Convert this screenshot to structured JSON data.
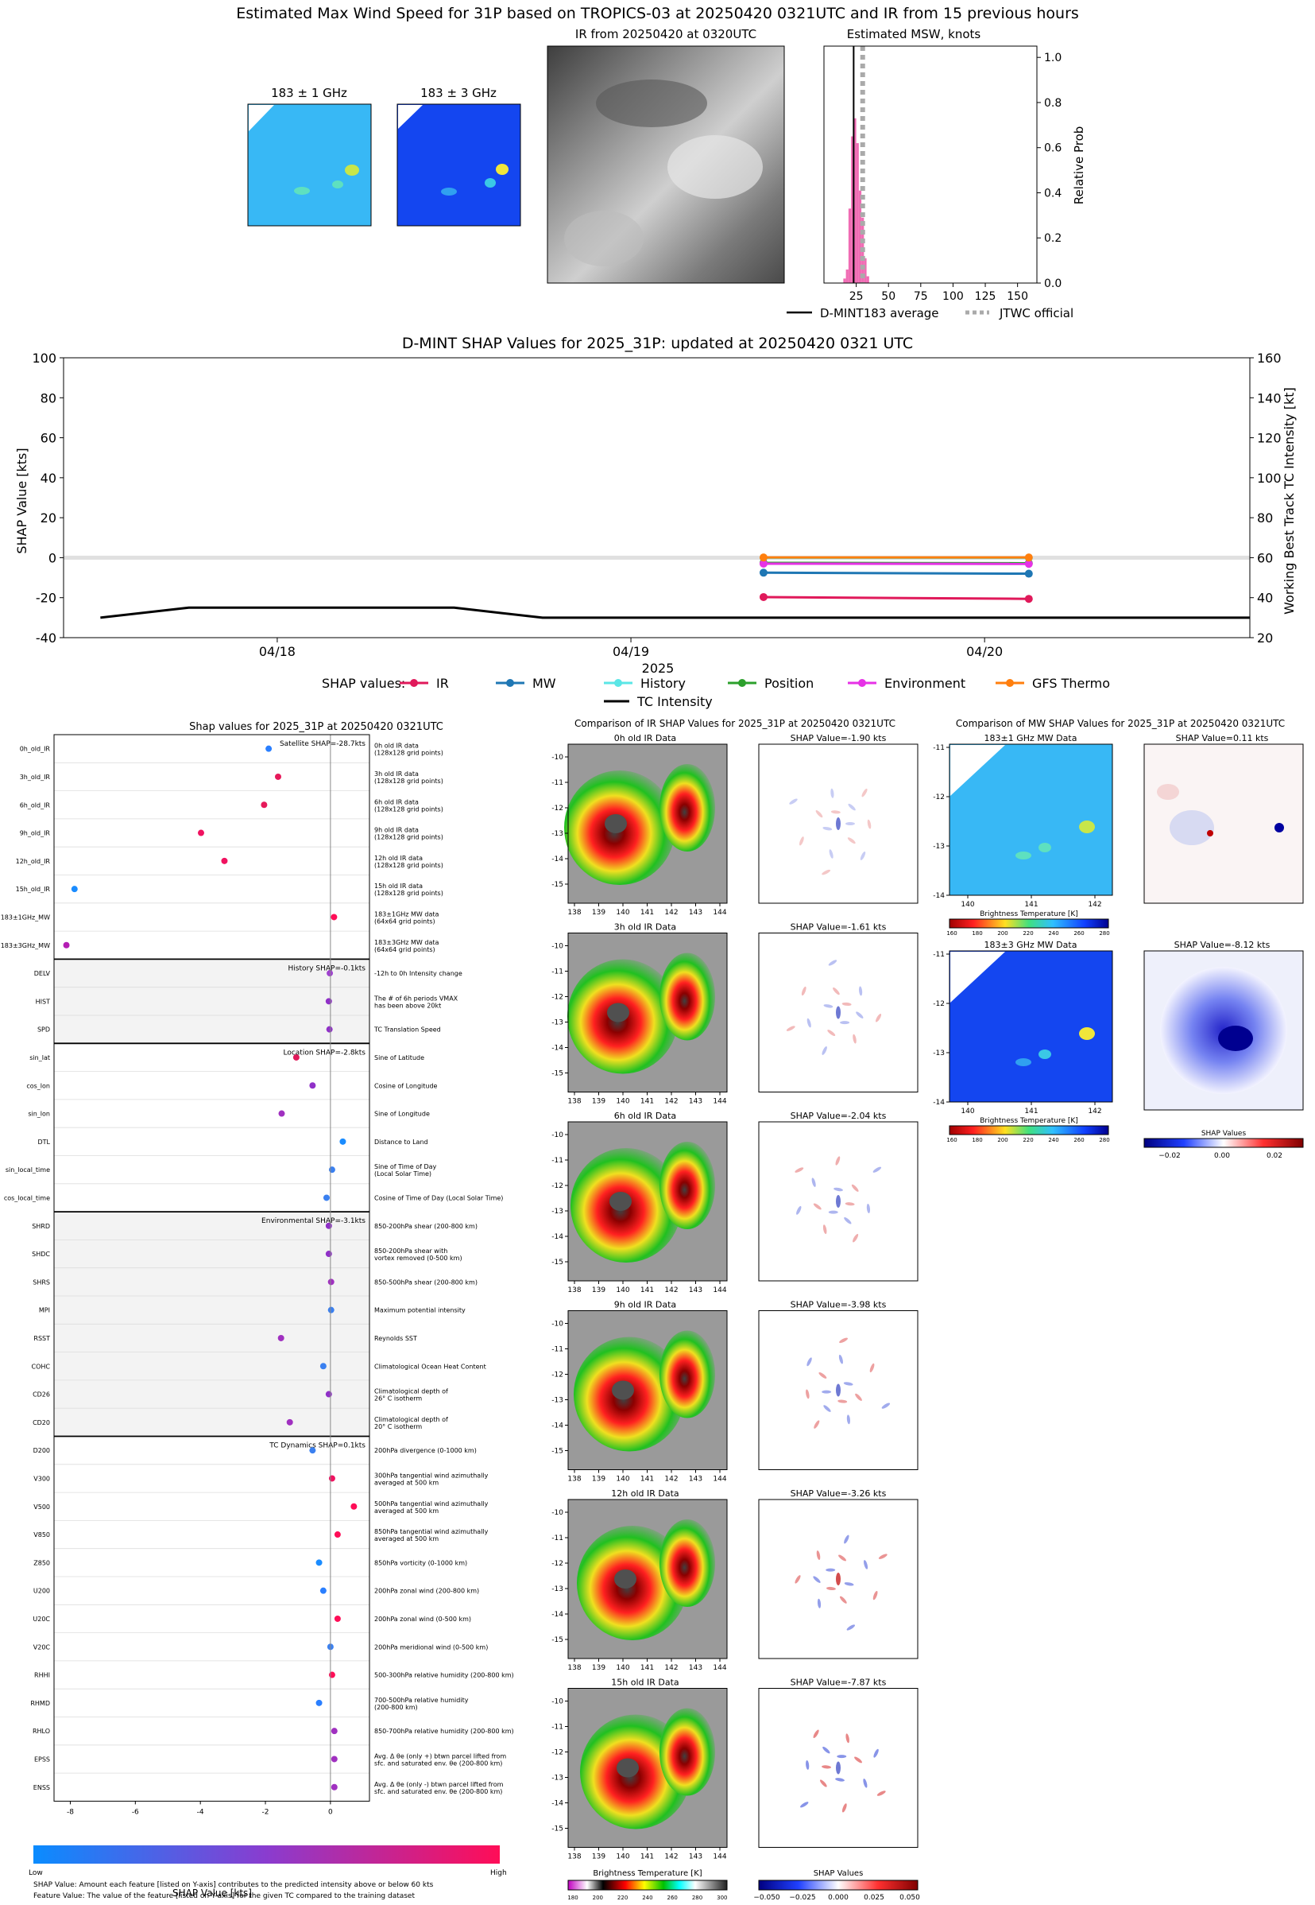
{
  "header": {
    "title": "Estimated Max Wind Speed for 31P based on TROPICS-03 at 20250420 0321UTC and IR from 15 previous hours"
  },
  "top_panels": {
    "mw1_title": "183 ± 1 GHz",
    "mw3_title": "183 ± 3 GHz",
    "ir_title": "IR from 20250420 at 0320UTC",
    "colors": {
      "mw1_base": "#38b8f5",
      "mw3_base": "#1446f0",
      "ir_base": "#6a6a6a"
    }
  },
  "msw_hist": {
    "title": "Estimated MSW, knots",
    "ylabel": "Relative Prob",
    "legend": {
      "dmint": "D-MINT183 average",
      "jtwc": "JTWC official"
    },
    "xticks": [
      "25",
      "50",
      "75",
      "100",
      "125",
      "150"
    ],
    "yticks": [
      "0.0",
      "0.2",
      "0.4",
      "0.6",
      "0.8",
      "1.0"
    ],
    "xlim": [
      0,
      165
    ],
    "ylim": [
      0,
      1.05
    ],
    "dmint_avg_kts": 23,
    "jtwc_kts": 30,
    "bar_color": "#f06cb4",
    "bins": [
      {
        "x": 16,
        "p": 0.02
      },
      {
        "x": 18,
        "p": 0.06
      },
      {
        "x": 20,
        "p": 0.33
      },
      {
        "x": 22,
        "p": 0.65
      },
      {
        "x": 24,
        "p": 0.73
      },
      {
        "x": 26,
        "p": 0.62
      },
      {
        "x": 28,
        "p": 0.41
      },
      {
        "x": 30,
        "p": 0.29
      },
      {
        "x": 32,
        "p": 0.11
      },
      {
        "x": 34,
        "p": 0.03
      }
    ]
  },
  "shap_ts": {
    "title": "D-MINT SHAP Values for 2025_31P: updated at 20250420 0321 UTC",
    "ylabel_left": "SHAP Value [kts]",
    "ylabel_right": "Working Best Track TC Intensity [kt]",
    "xlabel": "2025",
    "left_ticks": [
      "100",
      "80",
      "60",
      "40",
      "20",
      "0",
      "-20",
      "-40"
    ],
    "right_ticks": [
      "160",
      "140",
      "120",
      "100",
      "80",
      "60",
      "40",
      "20"
    ],
    "xticks": [
      "04/18",
      "04/19",
      "04/20"
    ],
    "legend_title": "SHAP values:",
    "legend": [
      {
        "name": "IR",
        "color": "#e0195a"
      },
      {
        "name": "MW",
        "color": "#1f77b4"
      },
      {
        "name": "History",
        "color": "#5ae6e6"
      },
      {
        "name": "Position",
        "color": "#2ca02c"
      },
      {
        "name": "Environment",
        "color": "#e632e6"
      },
      {
        "name": "GFS Thermo",
        "color": "#ff7f0e"
      }
    ],
    "tc_label": "TC Intensity"
  },
  "chart_data": [
    {
      "type": "line",
      "title": "D-MINT SHAP Values for 2025_31P: updated at 20250420 0321 UTC",
      "x_unit": "hours since 2025-04-17 18UTC",
      "series": [
        {
          "name": "IR",
          "x": [
            39,
            57
          ],
          "values": [
            -19.7,
            -20.6
          ],
          "color": "#e0195a"
        },
        {
          "name": "MW",
          "x": [
            39,
            57
          ],
          "values": [
            -7.5,
            -8.0
          ],
          "color": "#1f77b4"
        },
        {
          "name": "History",
          "x": [
            39,
            57
          ],
          "values": [
            -0.1,
            -0.1
          ],
          "color": "#5ae6e6"
        },
        {
          "name": "Position",
          "x": [
            39,
            57
          ],
          "values": [
            -2.6,
            -2.8
          ],
          "color": "#2ca02c"
        },
        {
          "name": "Environment",
          "x": [
            39,
            57
          ],
          "values": [
            -3.0,
            -3.1
          ],
          "color": "#e632e6"
        },
        {
          "name": "GFS Thermo",
          "x": [
            39,
            57
          ],
          "values": [
            0.1,
            0.1
          ],
          "color": "#ff7f0e"
        }
      ],
      "tc_intensity": {
        "name": "TC Intensity",
        "x": [
          -6,
          0,
          12,
          18,
          24,
          36,
          48,
          60,
          72
        ],
        "values": [
          30,
          35,
          35,
          35,
          30,
          30,
          30,
          30,
          30
        ]
      },
      "ylim_left": [
        -40,
        100
      ],
      "ylim_right": [
        20,
        160
      ]
    },
    {
      "type": "scatter",
      "title": "Shap values for 2025_31P at 20250420 0321UTC",
      "xlabel": "SHAP Value [kts]",
      "xlim": [
        -8.5,
        1.2
      ],
      "xticks": [
        "-8",
        "-6",
        "-4",
        "-2",
        "0"
      ],
      "groups": [
        {
          "summary": "Satellite SHAP=-28.7kts",
          "shaded": false,
          "features": [
            {
              "label": "0h_old_IR",
              "desc": [
                "0h old IR data",
                "(128x128 grid points)"
              ],
              "value": -1.9,
              "color": "#2a7fff"
            },
            {
              "label": "3h_old_IR",
              "desc": [
                "3h old IR data",
                "(128x128 grid points)"
              ],
              "value": -1.61,
              "color": "#e6195a"
            },
            {
              "label": "6h_old_IR",
              "desc": [
                "6h old IR data",
                "(128x128 grid points)"
              ],
              "value": -2.04,
              "color": "#e6195a"
            },
            {
              "label": "9h_old_IR",
              "desc": [
                "9h old IR data",
                "(128x128 grid points)"
              ],
              "value": -3.98,
              "color": "#f01260"
            },
            {
              "label": "12h_old_IR",
              "desc": [
                "12h old IR data",
                "(128x128 grid points)"
              ],
              "value": -3.26,
              "color": "#f01260"
            },
            {
              "label": "15h_old_IR",
              "desc": [
                "15h old IR data",
                "(128x128 grid points)"
              ],
              "value": -7.87,
              "color": "#1a8cff"
            },
            {
              "label": "183±1GHz_MW",
              "desc": [
                "183±1GHz MW data",
                "(64x64 grid points)"
              ],
              "value": 0.11,
              "color": "#ff0d57"
            },
            {
              "label": "183±3GHz_MW",
              "desc": [
                "183±3GHz MW data",
                "(64x64 grid points)"
              ],
              "value": -8.12,
              "color": "#b41eb4"
            }
          ]
        },
        {
          "summary": "History SHAP=-0.1kts",
          "shaded": true,
          "features": [
            {
              "label": "DELV",
              "desc": [
                "-12h to 0h Intensity change"
              ],
              "value": -0.02,
              "color": "#a040d0"
            },
            {
              "label": "HIST",
              "desc": [
                "The # of 6h periods VMAX",
                "has been above 20kt"
              ],
              "value": -0.05,
              "color": "#9030c8"
            },
            {
              "label": "SPD",
              "desc": [
                "TC Translation Speed"
              ],
              "value": -0.03,
              "color": "#9030c8"
            }
          ]
        },
        {
          "summary": "Location SHAP=-2.8kts",
          "shaded": false,
          "features": [
            {
              "label": "sin_lat",
              "desc": [
                "Sine of Latitude"
              ],
              "value": -1.05,
              "color": "#e0195a"
            },
            {
              "label": "cos_lon",
              "desc": [
                "Cosine of Longitude"
              ],
              "value": -0.55,
              "color": "#9030c8"
            },
            {
              "label": "sin_lon",
              "desc": [
                "Sine of Longitude"
              ],
              "value": -1.5,
              "color": "#a030c0"
            },
            {
              "label": "DTL",
              "desc": [
                "Distance to Land"
              ],
              "value": 0.38,
              "color": "#1a8cff"
            },
            {
              "label": "sin_local_time",
              "desc": [
                "Sine of Time of Day",
                "(Local Solar Time)"
              ],
              "value": 0.05,
              "color": "#3a80f0"
            },
            {
              "label": "cos_local_time",
              "desc": [
                "Cosine of Time of Day (Local Solar Time)"
              ],
              "value": -0.12,
              "color": "#3a80f0"
            }
          ]
        },
        {
          "summary": "Environmental SHAP=-3.1kts",
          "shaded": true,
          "features": [
            {
              "label": "SHRD",
              "desc": [
                "850-200hPa shear (200-800 km)"
              ],
              "value": -0.05,
              "color": "#9030c8"
            },
            {
              "label": "SHDC",
              "desc": [
                "850-200hPa shear with",
                "vortex removed (0-500 km)"
              ],
              "value": -0.05,
              "color": "#9030c8"
            },
            {
              "label": "SHRS",
              "desc": [
                "850-500hPa shear (200-800 km)"
              ],
              "value": 0.02,
              "color": "#a030c0"
            },
            {
              "label": "MPI",
              "desc": [
                "Maximum potential intensity"
              ],
              "value": 0.02,
              "color": "#3a80f0"
            },
            {
              "label": "RSST",
              "desc": [
                "Reynolds SST"
              ],
              "value": -1.52,
              "color": "#a030c0"
            },
            {
              "label": "COHC",
              "desc": [
                "Climatological Ocean Heat Content"
              ],
              "value": -0.22,
              "color": "#3a80f0"
            },
            {
              "label": "CD26",
              "desc": [
                "Climatological depth of",
                "26° C isotherm"
              ],
              "value": -0.05,
              "color": "#9030c8"
            },
            {
              "label": "CD20",
              "desc": [
                "Climatological depth of",
                "20° C isotherm"
              ],
              "value": -1.25,
              "color": "#a030c0"
            }
          ]
        },
        {
          "summary": "TC Dynamics SHAP=0.1kts",
          "shaded": false,
          "features": [
            {
              "label": "D200",
              "desc": [
                "200hPa divergence (0-1000 km)"
              ],
              "value": -0.55,
              "color": "#3a80f0"
            },
            {
              "label": "V300",
              "desc": [
                "300hPa tangential wind azimuthally",
                "averaged at 500 km"
              ],
              "value": 0.05,
              "color": "#f01260"
            },
            {
              "label": "V500",
              "desc": [
                "500hPa tangential wind azimuthally",
                "averaged at 500 km"
              ],
              "value": 0.72,
              "color": "#ff0d57"
            },
            {
              "label": "V850",
              "desc": [
                "850hPa tangential wind azimuthally",
                "averaged at 500 km"
              ],
              "value": 0.22,
              "color": "#ff0d57"
            },
            {
              "label": "Z850",
              "desc": [
                "850hPa vorticity (0-1000 km)"
              ],
              "value": -0.35,
              "color": "#1a8cff"
            },
            {
              "label": "U200",
              "desc": [
                "200hPa zonal wind (200-800 km)"
              ],
              "value": -0.22,
              "color": "#2a7fff"
            },
            {
              "label": "U20C",
              "desc": [
                "200hPa zonal wind (0-500 km)"
              ],
              "value": 0.22,
              "color": "#ff0d57"
            },
            {
              "label": "V20C",
              "desc": [
                "200hPa meridional wind (0-500 km)"
              ],
              "value": 0.0,
              "color": "#3a80f0"
            },
            {
              "label": "RHHI",
              "desc": [
                "500-300hPa relative humidity (200-800 km)"
              ],
              "value": 0.05,
              "color": "#ff0d57"
            },
            {
              "label": "RHMD",
              "desc": [
                "700-500hPa relative humidity",
                "(200-800 km)"
              ],
              "value": -0.35,
              "color": "#2a7fff"
            },
            {
              "label": "RHLO",
              "desc": [
                "850-700hPa relative humidity (200-800 km)"
              ],
              "value": 0.12,
              "color": "#a030c0"
            },
            {
              "label": "EPSS",
              "desc": [
                "Avg. Δ θe (only +) btwn parcel lifted from",
                "sfc. and saturated env. θe (200-800 km)"
              ],
              "value": 0.12,
              "color": "#a030c0"
            },
            {
              "label": "ENSS",
              "desc": [
                "Avg. Δ θe (only -) btwn parcel lifted from",
                "sfc. and saturated env. θe (200-800 km)"
              ],
              "value": 0.12,
              "color": "#a030c0"
            }
          ]
        }
      ]
    }
  ],
  "beeswarm_footer": {
    "low": "Low",
    "high": "High",
    "note1": "SHAP Value: Amount each feature [listed on Y-axis] contributes to the predicted intensity above or below 60 kts",
    "note2": "Feature Value: The value of the feature [listed on Y-axis] for the given TC compared to the training dataset"
  },
  "ir_comparison": {
    "title": "Comparison of IR SHAP Values for 2025_31P at 20250420 0321UTC",
    "rows": [
      {
        "data_title": "0h old IR Data",
        "shap_title": "SHAP Value=-1.90 kts"
      },
      {
        "data_title": "3h old IR Data",
        "shap_title": "SHAP Value=-1.61 kts"
      },
      {
        "data_title": "6h old IR Data",
        "shap_title": "SHAP Value=-2.04 kts"
      },
      {
        "data_title": "9h old IR Data",
        "shap_title": "SHAP Value=-3.98 kts"
      },
      {
        "data_title": "12h old IR Data",
        "shap_title": "SHAP Value=-3.26 kts"
      },
      {
        "data_title": "15h old IR Data",
        "shap_title": "SHAP Value=-7.87 kts"
      }
    ],
    "xticks": [
      "138",
      "139",
      "140",
      "141",
      "142",
      "143",
      "144"
    ],
    "yticks": [
      "-10",
      "-11",
      "-12",
      "-13",
      "-14",
      "-15"
    ],
    "bt_colorbar_label": "Brightness Temperature [K]",
    "bt_ticks": [
      "180",
      "200",
      "220",
      "240",
      "260",
      "280",
      "300"
    ],
    "shap_colorbar_label": "SHAP Values",
    "shap_ticks": [
      "−0.050",
      "−0.025",
      "0.000",
      "0.025",
      "0.050"
    ]
  },
  "mw_comparison": {
    "title": "Comparison of MW SHAP Values for 2025_31P at 20250420 0321UTC",
    "rows": [
      {
        "data_title": "183±1 GHz MW Data",
        "shap_title": "SHAP Value=0.11 kts",
        "base": "#38b8f5"
      },
      {
        "data_title": "183±3 GHz MW Data",
        "shap_title": "SHAP Value=-8.12 kts",
        "base": "#1446f0"
      }
    ],
    "xticks": [
      "140",
      "141",
      "142"
    ],
    "yticks": [
      "-11",
      "-12",
      "-13",
      "-14"
    ],
    "bt_colorbar_label": "Brightness Temperature [K]",
    "bt_ticks": [
      "160",
      "180",
      "200",
      "220",
      "240",
      "260",
      "280"
    ],
    "shap_colorbar_label": "SHAP Values",
    "shap_ticks": [
      "−0.02",
      "0.00",
      "0.02"
    ]
  }
}
